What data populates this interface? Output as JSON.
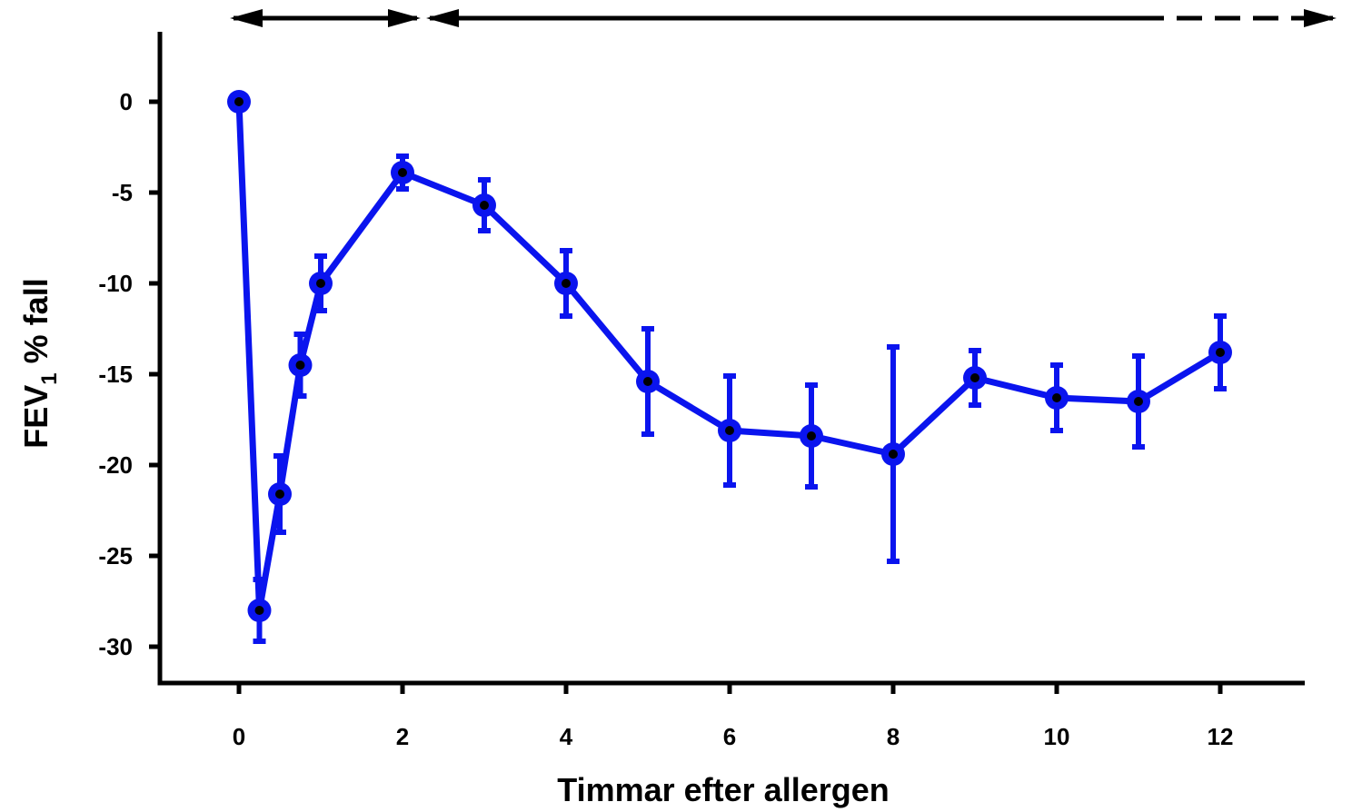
{
  "chart_data": {
    "type": "line",
    "title": "",
    "xlabel": "Timmar efter allergen",
    "ylabel_main": "FEV",
    "ylabel_sub": "1",
    "ylabel_rest": " % fall",
    "xlim": [
      -0.5,
      13
    ],
    "ylim": [
      -32,
      3.7
    ],
    "x_ticks": [
      0,
      2,
      4,
      6,
      8,
      10,
      12
    ],
    "x_tick_labels": [
      "0",
      "2",
      "4",
      "6",
      "8",
      "10",
      "12"
    ],
    "y_ticks": [
      0,
      -5,
      -10,
      -15,
      -20,
      -25,
      -30
    ],
    "y_tick_labels": [
      "0",
      "-5",
      "-10",
      "-15",
      "-20",
      "-25",
      "-30"
    ],
    "grid": false,
    "series": [
      {
        "color": "#0a14ee",
        "x": [
          0,
          0.25,
          0.5,
          0.75,
          1,
          2,
          3,
          4,
          5,
          6,
          7,
          8,
          9,
          10,
          11,
          12
        ],
        "y": [
          0,
          -28,
          -21.6,
          -14.5,
          -10,
          -3.9,
          -5.7,
          -10,
          -15.4,
          -18.1,
          -18.4,
          -19.4,
          -15.2,
          -16.3,
          -16.5,
          -13.8
        ],
        "err": [
          0,
          1.7,
          2.1,
          1.7,
          1.5,
          0.9,
          1.4,
          1.8,
          2.9,
          3.0,
          2.8,
          5.9,
          1.5,
          1.8,
          2.5,
          2.0
        ]
      }
    ],
    "annotations": [
      {
        "type": "arrow",
        "x_start": 0,
        "x_end": 2,
        "y": 4.6,
        "style": "solid",
        "double_headed": true
      },
      {
        "type": "arrow",
        "x_start": 2.4,
        "x_end": 13.2,
        "dash_from": 11,
        "y": 4.6,
        "style": "solid-then-dashed",
        "double_headed": true
      }
    ]
  }
}
